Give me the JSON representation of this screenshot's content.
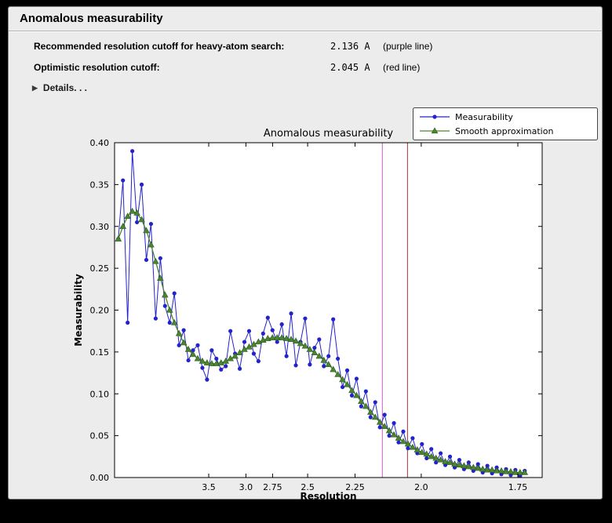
{
  "window": {
    "title": "Anomalous measurability"
  },
  "summary": {
    "rows": [
      {
        "label": "Recommended resolution cutoff for heavy-atom search:",
        "value": "2.136 A",
        "note": "(purple line)"
      },
      {
        "label": "Optimistic resolution cutoff:",
        "value": "2.045 A",
        "note": "(red line)"
      }
    ],
    "details_label": "Details. . ."
  },
  "chart_data": {
    "type": "line",
    "title": "Anomalous measurability",
    "xlabel": "Resolution",
    "ylabel": "Measurability",
    "x_scale": "inverse_d_squared",
    "grid": false,
    "plot_bg": "#ffffff",
    "figure_bg": "#ececec",
    "x_axis": {
      "s_min_edge": 0.00704,
      "s_max_edge": 0.3458,
      "tick_values": [
        3.5,
        3.0,
        2.75,
        2.5,
        2.25,
        2.0,
        1.75
      ],
      "tick_labels": [
        "3.5",
        "3.0",
        "2.75",
        "2.5",
        "2.25",
        "2.0",
        "1.75"
      ]
    },
    "y_axis": {
      "range": [
        0.0,
        0.4
      ],
      "tick_values": [
        0.0,
        0.05,
        0.1,
        0.15,
        0.2,
        0.25,
        0.3,
        0.35,
        0.4
      ],
      "tick_labels": [
        "0.00",
        "0.05",
        "0.10",
        "0.15",
        "0.20",
        "0.25",
        "0.30",
        "0.35",
        "0.40"
      ]
    },
    "bins": {
      "s_start": 0.01,
      "s_step": 0.0037011,
      "count": 88
    },
    "series": [
      {
        "name": "Measurability",
        "color": "#2323cc",
        "marker": "circle",
        "values": [
          0.285,
          0.355,
          0.185,
          0.39,
          0.305,
          0.35,
          0.26,
          0.303,
          0.19,
          0.262,
          0.205,
          0.185,
          0.22,
          0.158,
          0.176,
          0.14,
          0.152,
          0.158,
          0.131,
          0.117,
          0.152,
          0.142,
          0.129,
          0.133,
          0.175,
          0.148,
          0.13,
          0.162,
          0.175,
          0.148,
          0.139,
          0.172,
          0.191,
          0.176,
          0.162,
          0.183,
          0.145,
          0.196,
          0.134,
          0.162,
          0.19,
          0.135,
          0.155,
          0.165,
          0.133,
          0.145,
          0.189,
          0.142,
          0.108,
          0.128,
          0.098,
          0.118,
          0.085,
          0.103,
          0.072,
          0.09,
          0.06,
          0.075,
          0.05,
          0.065,
          0.042,
          0.055,
          0.035,
          0.047,
          0.029,
          0.04,
          0.023,
          0.034,
          0.018,
          0.029,
          0.015,
          0.025,
          0.012,
          0.021,
          0.01,
          0.018,
          0.008,
          0.016,
          0.006,
          0.014,
          0.005,
          0.012,
          0.004,
          0.01,
          0.003,
          0.009,
          0.002,
          0.008
        ]
      },
      {
        "name": "Smooth approximation",
        "color": "#4a8530",
        "edge_color": "#2f5c1d",
        "marker": "triangle",
        "values": [
          0.285,
          0.3,
          0.312,
          0.318,
          0.316,
          0.308,
          0.295,
          0.278,
          0.258,
          0.238,
          0.218,
          0.2,
          0.185,
          0.172,
          0.161,
          0.153,
          0.147,
          0.142,
          0.139,
          0.137,
          0.136,
          0.136,
          0.137,
          0.139,
          0.142,
          0.145,
          0.149,
          0.153,
          0.156,
          0.159,
          0.162,
          0.164,
          0.166,
          0.167,
          0.167,
          0.167,
          0.166,
          0.165,
          0.163,
          0.16,
          0.157,
          0.153,
          0.149,
          0.145,
          0.14,
          0.135,
          0.129,
          0.123,
          0.117,
          0.111,
          0.104,
          0.098,
          0.091,
          0.085,
          0.078,
          0.072,
          0.066,
          0.061,
          0.056,
          0.051,
          0.047,
          0.043,
          0.04,
          0.036,
          0.033,
          0.03,
          0.028,
          0.025,
          0.023,
          0.021,
          0.019,
          0.018,
          0.016,
          0.015,
          0.014,
          0.013,
          0.012,
          0.011,
          0.01,
          0.009,
          0.009,
          0.008,
          0.008,
          0.007,
          0.007,
          0.006,
          0.006,
          0.006
        ]
      }
    ],
    "cutoff_lines": [
      {
        "name": "purple-line",
        "resolution": 2.136,
        "color": "#c05fc0"
      },
      {
        "name": "red-line",
        "resolution": 2.045,
        "color": "#a23434"
      }
    ],
    "legend": {
      "position": "top-right"
    }
  }
}
